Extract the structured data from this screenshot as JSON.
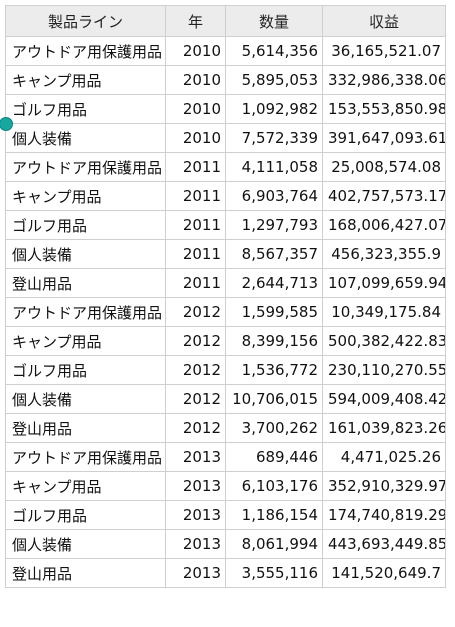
{
  "table": {
    "headers": {
      "line": "製品ライン",
      "year": "年",
      "quantity": "数量",
      "revenue": "収益"
    },
    "rows": [
      {
        "line": "アウトドア用保護用品",
        "year": "2010",
        "quantity": "5,614,356",
        "revenue": "36,165,521.07"
      },
      {
        "line": "キャンプ用品",
        "year": "2010",
        "quantity": "5,895,053",
        "revenue": "332,986,338.06"
      },
      {
        "line": "ゴルフ用品",
        "year": "2010",
        "quantity": "1,092,982",
        "revenue": "153,553,850.98"
      },
      {
        "line": "個人装備",
        "year": "2010",
        "quantity": "7,572,339",
        "revenue": "391,647,093.61"
      },
      {
        "line": "アウトドア用保護用品",
        "year": "2011",
        "quantity": "4,111,058",
        "revenue": "25,008,574.08"
      },
      {
        "line": "キャンプ用品",
        "year": "2011",
        "quantity": "6,903,764",
        "revenue": "402,757,573.17"
      },
      {
        "line": "ゴルフ用品",
        "year": "2011",
        "quantity": "1,297,793",
        "revenue": "168,006,427.07"
      },
      {
        "line": "個人装備",
        "year": "2011",
        "quantity": "8,567,357",
        "revenue": "456,323,355.9"
      },
      {
        "line": "登山用品",
        "year": "2011",
        "quantity": "2,644,713",
        "revenue": "107,099,659.94"
      },
      {
        "line": "アウトドア用保護用品",
        "year": "2012",
        "quantity": "1,599,585",
        "revenue": "10,349,175.84"
      },
      {
        "line": "キャンプ用品",
        "year": "2012",
        "quantity": "8,399,156",
        "revenue": "500,382,422.83"
      },
      {
        "line": "ゴルフ用品",
        "year": "2012",
        "quantity": "1,536,772",
        "revenue": "230,110,270.55"
      },
      {
        "line": "個人装備",
        "year": "2012",
        "quantity": "10,706,015",
        "revenue": "594,009,408.42"
      },
      {
        "line": "登山用品",
        "year": "2012",
        "quantity": "3,700,262",
        "revenue": "161,039,823.26"
      },
      {
        "line": "アウトドア用保護用品",
        "year": "2013",
        "quantity": "689,446",
        "revenue": "4,471,025.26"
      },
      {
        "line": "キャンプ用品",
        "year": "2013",
        "quantity": "6,103,176",
        "revenue": "352,910,329.97"
      },
      {
        "line": "ゴルフ用品",
        "year": "2013",
        "quantity": "1,186,154",
        "revenue": "174,740,819.29"
      },
      {
        "line": "個人装備",
        "year": "2013",
        "quantity": "8,061,994",
        "revenue": "443,693,449.85"
      },
      {
        "line": "登山用品",
        "year": "2013",
        "quantity": "3,555,116",
        "revenue": "141,520,649.7"
      }
    ]
  },
  "colors": {
    "header_background": "#ececec",
    "grid_line": "#cfcfcf",
    "handle": "#16a8a0"
  }
}
